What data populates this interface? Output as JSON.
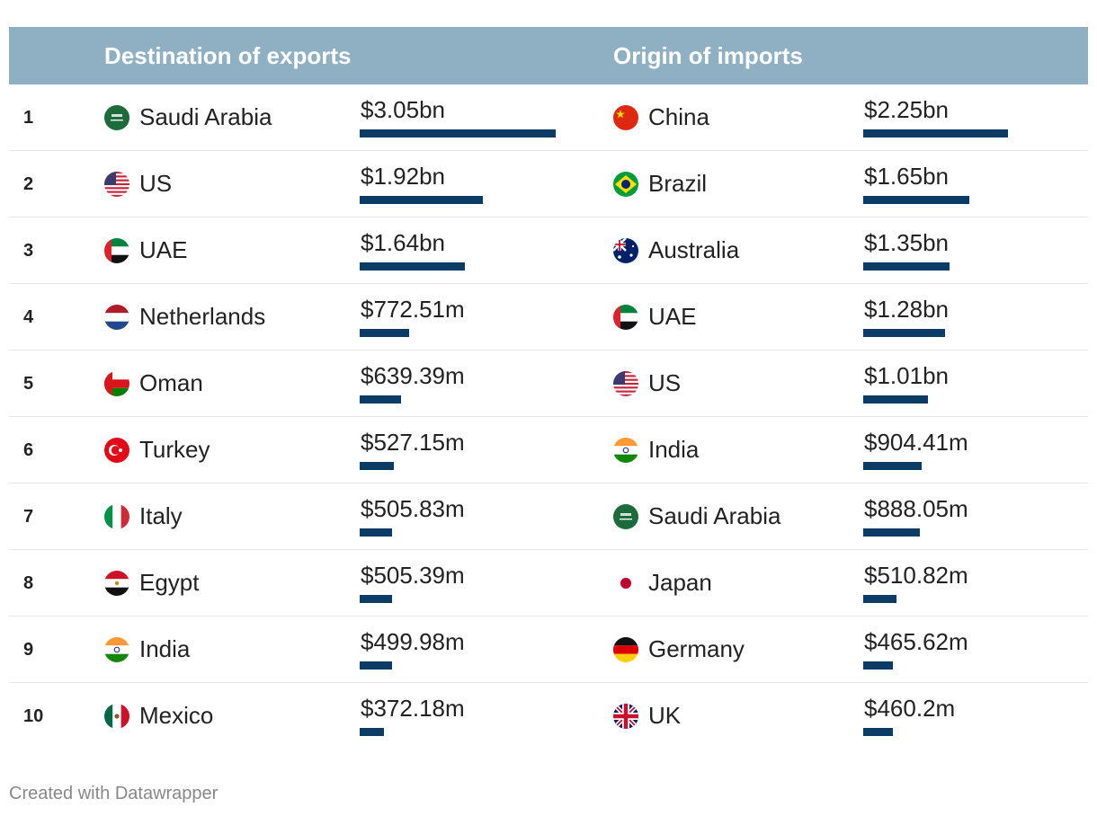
{
  "header": {
    "exports_title": "Destination of exports",
    "imports_title": "Origin of imports"
  },
  "chart_data": {
    "type": "table",
    "columns": [
      "",
      "Destination of exports",
      "",
      "Origin of imports",
      ""
    ],
    "max_value_bn": 3.05,
    "rows": [
      {
        "rank": "1",
        "export_country": "Saudi Arabia",
        "export_flag": "sa",
        "export_label": "$3.05bn",
        "export_value": 3.05,
        "import_country": "China",
        "import_flag": "cn",
        "import_label": "$2.25bn",
        "import_value": 2.25
      },
      {
        "rank": "2",
        "export_country": "US",
        "export_flag": "us",
        "export_label": "$1.92bn",
        "export_value": 1.92,
        "import_country": "Brazil",
        "import_flag": "br",
        "import_label": "$1.65bn",
        "import_value": 1.65
      },
      {
        "rank": "3",
        "export_country": "UAE",
        "export_flag": "ae",
        "export_label": "$1.64bn",
        "export_value": 1.64,
        "import_country": "Australia",
        "import_flag": "au",
        "import_label": "$1.35bn",
        "import_value": 1.35
      },
      {
        "rank": "4",
        "export_country": "Netherlands",
        "export_flag": "nl",
        "export_label": "$772.51m",
        "export_value": 0.77251,
        "import_country": "UAE",
        "import_flag": "ae",
        "import_label": "$1.28bn",
        "import_value": 1.28
      },
      {
        "rank": "5",
        "export_country": "Oman",
        "export_flag": "om",
        "export_label": "$639.39m",
        "export_value": 0.63939,
        "import_country": "US",
        "import_flag": "us",
        "import_label": "$1.01bn",
        "import_value": 1.01
      },
      {
        "rank": "6",
        "export_country": "Turkey",
        "export_flag": "tr",
        "export_label": "$527.15m",
        "export_value": 0.52715,
        "import_country": "India",
        "import_flag": "in",
        "import_label": "$904.41m",
        "import_value": 0.90441
      },
      {
        "rank": "7",
        "export_country": "Italy",
        "export_flag": "it",
        "export_label": "$505.83m",
        "export_value": 0.50583,
        "import_country": "Saudi Arabia",
        "import_flag": "sa",
        "import_label": "$888.05m",
        "import_value": 0.88805
      },
      {
        "rank": "8",
        "export_country": "Egypt",
        "export_flag": "eg",
        "export_label": "$505.39m",
        "export_value": 0.50539,
        "import_country": "Japan",
        "import_flag": "jp",
        "import_label": "$510.82m",
        "import_value": 0.51082
      },
      {
        "rank": "9",
        "export_country": "India",
        "export_flag": "in",
        "export_label": "$499.98m",
        "export_value": 0.49998,
        "import_country": "Germany",
        "import_flag": "de",
        "import_label": "$465.62m",
        "import_value": 0.46562
      },
      {
        "rank": "10",
        "export_country": "Mexico",
        "export_flag": "mx",
        "export_label": "$372.18m",
        "export_value": 0.37218,
        "import_country": "UK",
        "import_flag": "gb",
        "import_label": "$460.2m",
        "import_value": 0.4602
      }
    ]
  },
  "colors": {
    "header_bg": "#8fafc3",
    "bar": "#0c3b66"
  },
  "footer": {
    "credit": "Created with Datawrapper"
  }
}
